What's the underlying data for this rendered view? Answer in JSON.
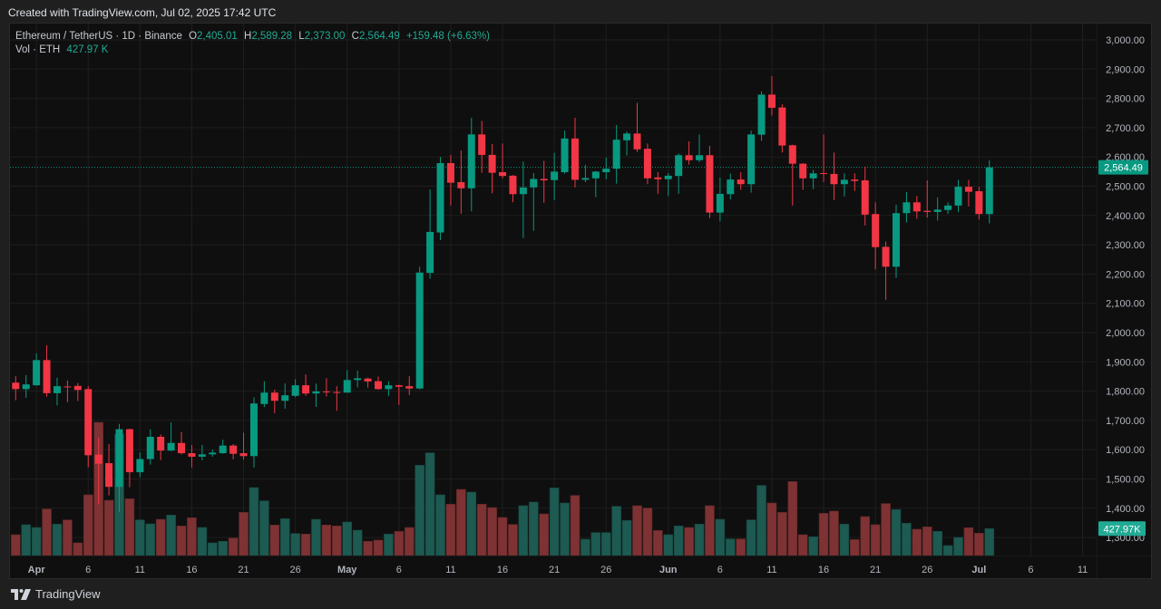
{
  "created_label": "Created with TradingView.com, Jul 02, 2025 17:42 UTC",
  "legend": {
    "symbol": "Ethereum / TetherUS · 1D · Binance",
    "o_label": "O",
    "o": "2,405.01",
    "h_label": "H",
    "h": "2,589.28",
    "l_label": "L",
    "l": "2,373.00",
    "c_label": "C",
    "c": "2,564.49",
    "change": "+159.48 (+6.63%)",
    "vol_label": "Vol · ETH",
    "vol": "427.97 K"
  },
  "logo_text": "TradingView",
  "colors": {
    "up": "#089981",
    "down": "#f23645",
    "vol_up": "#1d5a51",
    "vol_down": "#7e3233",
    "grid": "#1f1f1f"
  },
  "chart_data": {
    "type": "candlestick",
    "title": "Ethereum / TetherUS · 1D · Binance",
    "ylim": [
      1270,
      3040
    ],
    "y_ticks": [
      "3,000.00",
      "2,900.00",
      "2,800.00",
      "2,700.00",
      "2,600.00",
      "2,500.00",
      "2,400.00",
      "2,300.00",
      "2,200.00",
      "2,100.00",
      "2,000.00",
      "1,900.00",
      "1,800.00",
      "1,700.00",
      "1,600.00",
      "1,500.00",
      "1,400.00",
      "1,300.00"
    ],
    "x_ticks": [
      {
        "label": "Apr",
        "index": 2
      },
      {
        "label": "6",
        "index": 7
      },
      {
        "label": "11",
        "index": 12
      },
      {
        "label": "16",
        "index": 17
      },
      {
        "label": "21",
        "index": 22
      },
      {
        "label": "26",
        "index": 27
      },
      {
        "label": "May",
        "index": 32
      },
      {
        "label": "6",
        "index": 37
      },
      {
        "label": "11",
        "index": 42
      },
      {
        "label": "16",
        "index": 47
      },
      {
        "label": "21",
        "index": 52
      },
      {
        "label": "26",
        "index": 57
      },
      {
        "label": "Jun",
        "index": 63
      },
      {
        "label": "6",
        "index": 68
      },
      {
        "label": "11",
        "index": 73
      },
      {
        "label": "16",
        "index": 78
      },
      {
        "label": "21",
        "index": 83
      },
      {
        "label": "26",
        "index": 88
      },
      {
        "label": "Jul",
        "index": 93
      },
      {
        "label": "6",
        "index": 98
      },
      {
        "label": "11",
        "index": 103
      }
    ],
    "last_price_label": "2,564.49",
    "last_volume_label": "427.97K",
    "volume_unit": "K ETH",
    "columns": [
      "date",
      "open",
      "high",
      "low",
      "close",
      "volume"
    ],
    "candles": [
      [
        "Mar 30",
        1829,
        1851,
        1769,
        1807,
        331
      ],
      [
        "Mar 31",
        1807,
        1855,
        1777,
        1823,
        490
      ],
      [
        "Apr 1",
        1820,
        1929,
        1818,
        1906,
        446
      ],
      [
        "Apr 2",
        1906,
        1957,
        1781,
        1793,
        739
      ],
      [
        "Apr 3",
        1793,
        1846,
        1751,
        1817,
        499
      ],
      [
        "Apr 4",
        1816,
        1836,
        1762,
        1813,
        566
      ],
      [
        "Apr 5",
        1818,
        1828,
        1766,
        1804,
        202
      ],
      [
        "Apr 6",
        1807,
        1817,
        1540,
        1581,
        965
      ],
      [
        "Apr 7",
        1583,
        1640,
        1413,
        1552,
        2117
      ],
      [
        "Apr 8",
        1554,
        1619,
        1444,
        1473,
        878
      ],
      [
        "Apr 9",
        1473,
        1688,
        1387,
        1670,
        1925
      ],
      [
        "Apr 10",
        1670,
        1672,
        1472,
        1523,
        902
      ],
      [
        "Apr 11",
        1523,
        1591,
        1506,
        1568,
        566
      ],
      [
        "Apr 12",
        1568,
        1670,
        1549,
        1644,
        504
      ],
      [
        "Apr 13",
        1644,
        1652,
        1564,
        1597,
        576
      ],
      [
        "Apr 14",
        1597,
        1693,
        1595,
        1623,
        643
      ],
      [
        "Apr 15",
        1623,
        1660,
        1584,
        1588,
        470
      ],
      [
        "Apr 16",
        1588,
        1616,
        1539,
        1576,
        600
      ],
      [
        "Apr 17",
        1576,
        1616,
        1564,
        1584,
        446
      ],
      [
        "Apr 18",
        1584,
        1600,
        1576,
        1590,
        202
      ],
      [
        "Apr 19",
        1588,
        1634,
        1586,
        1614,
        226
      ],
      [
        "Apr 20",
        1614,
        1619,
        1567,
        1586,
        278
      ],
      [
        "Apr 21",
        1588,
        1658,
        1566,
        1578,
        686
      ],
      [
        "Apr 22",
        1578,
        1779,
        1539,
        1758,
        1080
      ],
      [
        "Apr 23",
        1756,
        1834,
        1746,
        1795,
        869
      ],
      [
        "Apr 24",
        1795,
        1805,
        1725,
        1767,
        485
      ],
      [
        "Apr 25",
        1767,
        1826,
        1740,
        1786,
        586
      ],
      [
        "Apr 26",
        1784,
        1841,
        1779,
        1820,
        350
      ],
      [
        "Apr 27",
        1820,
        1857,
        1784,
        1792,
        341
      ],
      [
        "Apr 28",
        1792,
        1826,
        1746,
        1799,
        576
      ],
      [
        "Apr 29",
        1799,
        1844,
        1782,
        1796,
        485
      ],
      [
        "Apr 30",
        1797,
        1817,
        1733,
        1794,
        470
      ],
      [
        "May 1",
        1795,
        1872,
        1795,
        1838,
        533
      ],
      [
        "May 2",
        1838,
        1870,
        1813,
        1844,
        403
      ],
      [
        "May 3",
        1843,
        1846,
        1812,
        1833,
        226
      ],
      [
        "May 4",
        1834,
        1850,
        1805,
        1807,
        245
      ],
      [
        "May 5",
        1807,
        1834,
        1784,
        1820,
        341
      ],
      [
        "May 6",
        1820,
        1822,
        1753,
        1815,
        384
      ],
      [
        "May 7",
        1817,
        1851,
        1787,
        1809,
        446
      ],
      [
        "May 8",
        1809,
        2225,
        1806,
        2205,
        1435
      ],
      [
        "May 9",
        2204,
        2489,
        2184,
        2344,
        1632
      ],
      [
        "May 10",
        2342,
        2600,
        2316,
        2579,
        965
      ],
      [
        "May 11",
        2579,
        2607,
        2434,
        2512,
        816
      ],
      [
        "May 12",
        2514,
        2622,
        2406,
        2493,
        1051
      ],
      [
        "May 13",
        2493,
        2734,
        2414,
        2677,
        1008
      ],
      [
        "May 14",
        2677,
        2723,
        2546,
        2607,
        816
      ],
      [
        "May 15",
        2607,
        2644,
        2476,
        2546,
        763
      ],
      [
        "May 16",
        2548,
        2646,
        2527,
        2535,
        605
      ],
      [
        "May 17",
        2536,
        2538,
        2445,
        2473,
        494
      ],
      [
        "May 18",
        2473,
        2584,
        2323,
        2496,
        792
      ],
      [
        "May 19",
        2496,
        2545,
        2348,
        2525,
        850
      ],
      [
        "May 20",
        2525,
        2587,
        2443,
        2520,
        662
      ],
      [
        "May 21",
        2521,
        2614,
        2453,
        2550,
        1075
      ],
      [
        "May 22",
        2548,
        2690,
        2543,
        2663,
        835
      ],
      [
        "May 23",
        2663,
        2734,
        2496,
        2522,
        955
      ],
      [
        "May 24",
        2522,
        2573,
        2514,
        2528,
        259
      ],
      [
        "May 25",
        2527,
        2552,
        2463,
        2550,
        365
      ],
      [
        "May 26",
        2548,
        2598,
        2524,
        2560,
        365
      ],
      [
        "May 27",
        2560,
        2709,
        2509,
        2659,
        782
      ],
      [
        "May 28",
        2657,
        2687,
        2605,
        2680,
        557
      ],
      [
        "May 29",
        2680,
        2785,
        2617,
        2626,
        792
      ],
      [
        "May 30",
        2628,
        2646,
        2507,
        2527,
        754
      ],
      [
        "May 31",
        2530,
        2548,
        2474,
        2524,
        398
      ],
      [
        "Jun 1",
        2524,
        2545,
        2467,
        2536,
        331
      ],
      [
        "Jun 2",
        2535,
        2612,
        2474,
        2606,
        470
      ],
      [
        "Jun 3",
        2606,
        2653,
        2574,
        2589,
        446
      ],
      [
        "Jun 4",
        2589,
        2677,
        2582,
        2606,
        499
      ],
      [
        "Jun 5",
        2606,
        2638,
        2391,
        2410,
        792
      ],
      [
        "Jun 6",
        2410,
        2529,
        2380,
        2474,
        576
      ],
      [
        "Jun 7",
        2473,
        2543,
        2455,
        2523,
        264
      ],
      [
        "Jun 8",
        2523,
        2548,
        2488,
        2507,
        264
      ],
      [
        "Jun 9",
        2507,
        2690,
        2478,
        2677,
        566
      ],
      [
        "Jun 10",
        2676,
        2824,
        2655,
        2813,
        1114
      ],
      [
        "Jun 11",
        2813,
        2876,
        2741,
        2768,
        835
      ],
      [
        "Jun 12",
        2769,
        2780,
        2615,
        2639,
        686
      ],
      [
        "Jun 13",
        2640,
        2642,
        2434,
        2577,
        1176
      ],
      [
        "Jun 14",
        2577,
        2579,
        2488,
        2527,
        331
      ],
      [
        "Jun 15",
        2527,
        2556,
        2490,
        2544,
        298
      ],
      [
        "Jun 16",
        2545,
        2677,
        2514,
        2542,
        672
      ],
      [
        "Jun 17",
        2542,
        2615,
        2453,
        2507,
        706
      ],
      [
        "Jun 18",
        2507,
        2544,
        2465,
        2522,
        499
      ],
      [
        "Jun 19",
        2523,
        2544,
        2484,
        2518,
        254
      ],
      [
        "Jun 20",
        2520,
        2567,
        2366,
        2403,
        619
      ],
      [
        "Jun 21",
        2405,
        2445,
        2216,
        2292,
        490
      ],
      [
        "Jun 22",
        2293,
        2311,
        2112,
        2225,
        826
      ],
      [
        "Jun 23",
        2225,
        2437,
        2187,
        2408,
        730
      ],
      [
        "Jun 24",
        2408,
        2480,
        2376,
        2445,
        514
      ],
      [
        "Jun 25",
        2445,
        2467,
        2389,
        2414,
        418
      ],
      [
        "Jun 26",
        2416,
        2520,
        2393,
        2412,
        456
      ],
      [
        "Jun 27",
        2412,
        2462,
        2383,
        2420,
        384
      ],
      [
        "Jun 28",
        2419,
        2445,
        2406,
        2434,
        158
      ],
      [
        "Jun 29",
        2434,
        2522,
        2412,
        2498,
        288
      ],
      [
        "Jun 30",
        2498,
        2522,
        2431,
        2481,
        442
      ],
      [
        "Jul 1",
        2483,
        2498,
        2386,
        2405,
        355
      ],
      [
        "Jul 2",
        2405.01,
        2589.28,
        2373.0,
        2564.49,
        427.97
      ]
    ]
  }
}
